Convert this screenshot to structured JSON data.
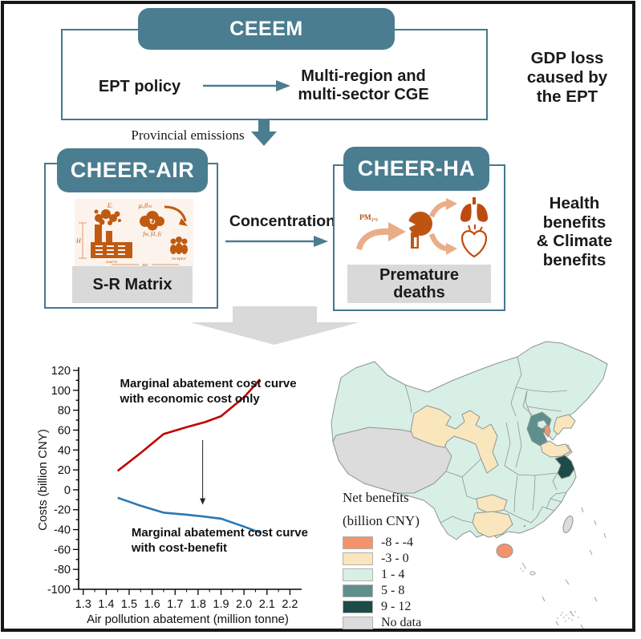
{
  "top": {
    "ceeem": "CEEEM",
    "ept_policy": "EPT policy",
    "cge_lines": [
      "Multi-region and",
      "multi-sector CGE"
    ],
    "gdp_lines": [
      "GDP loss",
      "caused by",
      "the EPT"
    ],
    "provincial_emissions": "Provincial emissions"
  },
  "middle": {
    "cheer_air": "CHEER-AIR",
    "sr_matrix": "S-R Matrix",
    "concentration": "Concentration",
    "cheer_ha": "CHEER-HA",
    "premature_lines": [
      "Premature",
      "deaths"
    ],
    "health_lines": [
      "Health",
      "benefits",
      "& Climate",
      "benefits"
    ],
    "sr_labels": {
      "emission": "Eᵢ",
      "transport": "μᵢ,θₘ",
      "deposition": "fw, fd, fc",
      "height": "H",
      "source": "source",
      "distance": "xsr",
      "receptor": "receptor"
    },
    "ha_labels": {
      "pm": "PM₂.₅"
    }
  },
  "chart_data": {
    "type": "line",
    "title": "",
    "xlabel": "Air pollution abatement (million tonne)",
    "ylabel": "Costs (billion CNY)",
    "xlim": [
      1.28,
      2.23
    ],
    "ylim": [
      -100,
      120
    ],
    "xticks": [
      1.3,
      1.4,
      1.5,
      1.6,
      1.7,
      1.8,
      1.9,
      2.0,
      2.1,
      2.2
    ],
    "ytick_step": 20,
    "ytick_minor_step": 10,
    "grid": false,
    "legend_position": "none",
    "series": [
      {
        "name": "Marginal abatement cost curve with economic cost only",
        "color": "#c00000",
        "points": [
          [
            1.45,
            19
          ],
          [
            1.55,
            37
          ],
          [
            1.65,
            56
          ],
          [
            1.75,
            63
          ],
          [
            1.83,
            68
          ],
          [
            1.9,
            74
          ],
          [
            2.0,
            93
          ],
          [
            2.07,
            111
          ]
        ]
      },
      {
        "name": "Marginal abatement cost curve with cost-benefit",
        "color": "#2878b5",
        "points": [
          [
            1.45,
            -8
          ],
          [
            1.55,
            -16
          ],
          [
            1.65,
            -23
          ],
          [
            1.75,
            -25
          ],
          [
            1.83,
            -27
          ],
          [
            1.9,
            -29
          ],
          [
            2.0,
            -37
          ],
          [
            2.07,
            -43
          ]
        ]
      }
    ],
    "labels": [
      {
        "lines": [
          "Marginal abatement cost curve",
          "with economic cost only"
        ],
        "x": 1.46,
        "y": 103
      },
      {
        "lines": [
          "Marginal abatement cost curve",
          "with cost-benefit"
        ],
        "x": 1.51,
        "y": -47
      }
    ],
    "arrow": {
      "x": 1.82,
      "from": 50,
      "to": -15
    }
  },
  "map": {
    "legend_title": "Net benefits",
    "legend_subtitle": "(billion CNY)",
    "legend": [
      {
        "label": "-8 - -4",
        "color": "#f4936b",
        "key": "orange"
      },
      {
        "label": "-3 - 0",
        "color": "#fae6bd",
        "key": "tan"
      },
      {
        "label": "1 - 4",
        "color": "#d8efe5",
        "key": "mint"
      },
      {
        "label": "5 - 8",
        "color": "#5e8f8b",
        "key": "teal"
      },
      {
        "label": "9 - 12",
        "color": "#1d4b47",
        "key": "darkteal"
      },
      {
        "label": "No data",
        "color": "#dcdcdc",
        "key": "gray"
      }
    ]
  },
  "colors": {
    "accent_teal": "#4b7d90",
    "box_border_teal": "#45788c",
    "label_gray": "#d9d9d9",
    "diagram_orange": "#c05a11",
    "diagram_light_orange": "#e9ad88",
    "curve_red": "#c00000",
    "curve_blue": "#2878b5"
  }
}
